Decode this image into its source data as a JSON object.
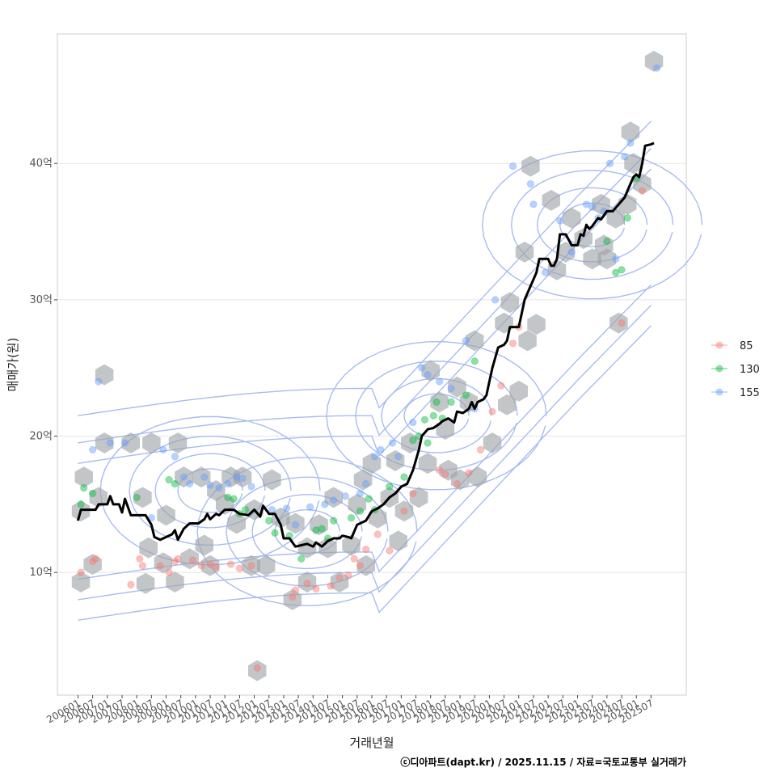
{
  "chart_data": {
    "type": "scatter",
    "xlabel": "거래년월",
    "ylabel": "매매가(원)",
    "caption": "ⓒ디아파트(dapt.kr) / 2025.11.15 / 자료=국토교통부 실거래가",
    "ylim": [
      1,
      49.5
    ],
    "xlim": [
      2005.3,
      2026.7
    ],
    "y_ticks": [
      {
        "value": 10,
        "label": "10억"
      },
      {
        "value": 20,
        "label": "20억"
      },
      {
        "value": 30,
        "label": "30억"
      },
      {
        "value": 40,
        "label": "40억"
      }
    ],
    "x_ticks": [
      "200601",
      "200607",
      "200701",
      "200707",
      "200801",
      "200807",
      "200901",
      "200907",
      "201001",
      "201007",
      "201101",
      "201107",
      "201201",
      "201207",
      "201301",
      "201307",
      "201401",
      "201407",
      "201501",
      "201507",
      "201601",
      "201607",
      "201701",
      "201707",
      "201801",
      "201807",
      "201901",
      "201907",
      "202001",
      "202007",
      "202101",
      "202107",
      "202201",
      "202207",
      "202301",
      "202307",
      "202401",
      "202407",
      "202501",
      "202507"
    ],
    "legend": {
      "entries": [
        {
          "label": "85",
          "color": "#F8766D"
        },
        {
          "label": "130",
          "color": "#00BA38"
        },
        {
          "label": "155",
          "color": "#619CFF"
        }
      ]
    },
    "colors": {
      "trend": "#000000",
      "hex": "#9EA3A8",
      "contour": "#A9BCF0",
      "grid": "#E5E5E5"
    },
    "series": [
      {
        "name": "85",
        "points": [
          [
            2006.1,
            10
          ],
          [
            2006.5,
            10.8
          ],
          [
            2006.6,
            11
          ],
          [
            2007.8,
            9.1
          ],
          [
            2008.1,
            11
          ],
          [
            2008.2,
            10.5
          ],
          [
            2008.8,
            10.5
          ],
          [
            2009.1,
            10
          ],
          [
            2009.3,
            10.8
          ],
          [
            2009.4,
            11
          ],
          [
            2009.9,
            10.9
          ],
          [
            2010.2,
            10.5
          ],
          [
            2010.5,
            10.6
          ],
          [
            2010.7,
            10.4
          ],
          [
            2011.2,
            10.6
          ],
          [
            2011.5,
            10.3
          ],
          [
            2011.9,
            10.5
          ],
          [
            2012.1,
            3
          ],
          [
            2013.3,
            8.2
          ],
          [
            2013.4,
            8.7
          ],
          [
            2013.8,
            9.2
          ],
          [
            2014.1,
            8.8
          ],
          [
            2014.6,
            9
          ],
          [
            2014.9,
            9.6
          ],
          [
            2015.2,
            9.8
          ],
          [
            2015.4,
            11
          ],
          [
            2015.6,
            10.5
          ],
          [
            2015.8,
            11.7
          ],
          [
            2016.2,
            12.8
          ],
          [
            2016.6,
            11.6
          ],
          [
            2017.1,
            14.5
          ],
          [
            2017.4,
            15.8
          ],
          [
            2018.3,
            17.5
          ],
          [
            2018.5,
            17.2
          ],
          [
            2018.9,
            16.5
          ],
          [
            2019.3,
            17.3
          ],
          [
            2019.7,
            19
          ],
          [
            2020.1,
            21.8
          ],
          [
            2020.4,
            23.7
          ],
          [
            2020.8,
            26.8
          ],
          [
            2021.0,
            28
          ],
          [
            2024.5,
            28.3
          ],
          [
            2025.2,
            38
          ]
        ]
      },
      {
        "name": "130",
        "points": [
          [
            2006.1,
            15
          ],
          [
            2006.2,
            16.2
          ],
          [
            2006.5,
            15.8
          ],
          [
            2008.0,
            15.5
          ],
          [
            2009.1,
            16.8
          ],
          [
            2009.3,
            16.5
          ],
          [
            2011.1,
            15.5
          ],
          [
            2011.3,
            15.4
          ],
          [
            2011.5,
            14.3
          ],
          [
            2011.7,
            14.6
          ],
          [
            2012.5,
            13.8
          ],
          [
            2012.7,
            12.9
          ],
          [
            2013.2,
            12.7
          ],
          [
            2013.6,
            11
          ],
          [
            2014.1,
            13.1
          ],
          [
            2014.3,
            13.2
          ],
          [
            2014.5,
            12.5
          ],
          [
            2014.7,
            13.8
          ],
          [
            2015.3,
            14
          ],
          [
            2015.6,
            14.5
          ],
          [
            2015.9,
            15.4
          ],
          [
            2016.1,
            14.6
          ],
          [
            2016.6,
            16.3
          ],
          [
            2017.1,
            17
          ],
          [
            2017.4,
            19.7
          ],
          [
            2017.6,
            20
          ],
          [
            2017.8,
            21.2
          ],
          [
            2017.9,
            19.5
          ],
          [
            2018.1,
            21.5
          ],
          [
            2018.2,
            22.5
          ],
          [
            2018.4,
            21.3
          ],
          [
            2018.7,
            22.5
          ],
          [
            2019.2,
            23
          ],
          [
            2019.5,
            25.5
          ],
          [
            2024.0,
            34.3
          ],
          [
            2024.3,
            32
          ],
          [
            2024.5,
            32.2
          ],
          [
            2024.7,
            36
          ],
          [
            2025.0,
            38.9
          ]
        ]
      },
      {
        "name": "155",
        "points": [
          [
            2006.5,
            19
          ],
          [
            2006.7,
            24
          ],
          [
            2007.1,
            19.5
          ],
          [
            2007.6,
            19.5
          ],
          [
            2008.5,
            14
          ],
          [
            2008.9,
            19
          ],
          [
            2009.3,
            18.5
          ],
          [
            2009.6,
            17
          ],
          [
            2009.8,
            16.5
          ],
          [
            2010.3,
            17
          ],
          [
            2010.5,
            16.4
          ],
          [
            2010.8,
            16.2
          ],
          [
            2011.1,
            16.5
          ],
          [
            2011.4,
            17
          ],
          [
            2011.6,
            16.9
          ],
          [
            2011.9,
            16.3
          ],
          [
            2012.6,
            14.6
          ],
          [
            2013.1,
            14.7
          ],
          [
            2013.4,
            13.5
          ],
          [
            2013.9,
            14.8
          ],
          [
            2014.4,
            15
          ],
          [
            2014.7,
            15.3
          ],
          [
            2015.1,
            15.6
          ],
          [
            2015.6,
            15.8
          ],
          [
            2015.8,
            16.5
          ],
          [
            2016.1,
            18.5
          ],
          [
            2016.3,
            19
          ],
          [
            2016.7,
            19.5
          ],
          [
            2016.9,
            18.5
          ],
          [
            2017.4,
            21
          ],
          [
            2017.7,
            25
          ],
          [
            2017.9,
            24.5
          ],
          [
            2018.3,
            24
          ],
          [
            2018.7,
            23.5
          ],
          [
            2019.2,
            27
          ],
          [
            2019.5,
            22
          ],
          [
            2020.2,
            30
          ],
          [
            2020.8,
            39.8
          ],
          [
            2021.4,
            38.5
          ],
          [
            2021.5,
            37
          ],
          [
            2021.9,
            32
          ],
          [
            2022.4,
            35.8
          ],
          [
            2022.8,
            33.5
          ],
          [
            2023.3,
            37
          ],
          [
            2023.5,
            36.8
          ],
          [
            2023.7,
            36
          ],
          [
            2023.9,
            36.5
          ],
          [
            2024.1,
            40
          ],
          [
            2024.3,
            33
          ],
          [
            2024.6,
            40.5
          ],
          [
            2024.8,
            41.5
          ],
          [
            2025.7,
            47
          ]
        ]
      }
    ],
    "trend": [
      [
        2006.0,
        13.8
      ],
      [
        2006.1,
        14.6
      ],
      [
        2006.6,
        14.6
      ],
      [
        2006.7,
        15
      ],
      [
        2007.0,
        15
      ],
      [
        2007.1,
        15.6
      ],
      [
        2007.2,
        15
      ],
      [
        2007.4,
        15
      ],
      [
        2007.5,
        14.4
      ],
      [
        2007.6,
        15.4
      ],
      [
        2007.8,
        14.2
      ],
      [
        2008.3,
        14.2
      ],
      [
        2008.5,
        13.5
      ],
      [
        2008.6,
        12.6
      ],
      [
        2008.8,
        12.4
      ],
      [
        2009.0,
        12.6
      ],
      [
        2009.2,
        12.8
      ],
      [
        2009.3,
        13.1
      ],
      [
        2009.4,
        12.4
      ],
      [
        2009.6,
        13.2
      ],
      [
        2009.8,
        13.6
      ],
      [
        2010.1,
        13.6
      ],
      [
        2010.3,
        13.9
      ],
      [
        2010.4,
        14.3
      ],
      [
        2010.5,
        13.9
      ],
      [
        2010.7,
        14.3
      ],
      [
        2010.8,
        14.2
      ],
      [
        2011.0,
        14.6
      ],
      [
        2011.3,
        14.6
      ],
      [
        2011.5,
        14.3
      ],
      [
        2011.8,
        14.2
      ],
      [
        2012.0,
        14.6
      ],
      [
        2012.2,
        14.1
      ],
      [
        2012.3,
        14.9
      ],
      [
        2012.5,
        14.3
      ],
      [
        2012.7,
        14.3
      ],
      [
        2012.9,
        13.5
      ],
      [
        2013.0,
        12.5
      ],
      [
        2013.2,
        12.5
      ],
      [
        2013.4,
        11.9
      ],
      [
        2013.6,
        12
      ],
      [
        2013.8,
        12.1
      ],
      [
        2014.0,
        11.9
      ],
      [
        2014.1,
        12.2
      ],
      [
        2014.3,
        11.9
      ],
      [
        2014.5,
        12.3
      ],
      [
        2014.7,
        12.5
      ],
      [
        2014.9,
        12.5
      ],
      [
        2015.0,
        12.7
      ],
      [
        2015.2,
        12.6
      ],
      [
        2015.3,
        12.5
      ],
      [
        2015.5,
        13.5
      ],
      [
        2015.8,
        13.8
      ],
      [
        2016.0,
        14.5
      ],
      [
        2016.2,
        14.7
      ],
      [
        2016.4,
        15
      ],
      [
        2016.6,
        15.5
      ],
      [
        2016.8,
        15.8
      ],
      [
        2017.0,
        16.3
      ],
      [
        2017.2,
        16.5
      ],
      [
        2017.4,
        17.5
      ],
      [
        2017.6,
        19
      ],
      [
        2017.7,
        20
      ],
      [
        2017.9,
        20.5
      ],
      [
        2018.1,
        20.6
      ],
      [
        2018.3,
        20.9
      ],
      [
        2018.4,
        21.1
      ],
      [
        2018.6,
        21.3
      ],
      [
        2018.8,
        21
      ],
      [
        2018.9,
        21.8
      ],
      [
        2019.1,
        21.7
      ],
      [
        2019.3,
        22
      ],
      [
        2019.4,
        22.5
      ],
      [
        2019.5,
        22
      ],
      [
        2019.6,
        22.5
      ],
      [
        2019.8,
        22.7
      ],
      [
        2019.9,
        23
      ],
      [
        2020.0,
        24
      ],
      [
        2020.1,
        25
      ],
      [
        2020.3,
        26.5
      ],
      [
        2020.5,
        26.7
      ],
      [
        2020.6,
        27
      ],
      [
        2020.7,
        28
      ],
      [
        2021.0,
        28
      ],
      [
        2021.1,
        29
      ],
      [
        2021.2,
        30
      ],
      [
        2021.4,
        31
      ],
      [
        2021.5,
        31.5
      ],
      [
        2021.6,
        32
      ],
      [
        2021.7,
        33
      ],
      [
        2022.0,
        33
      ],
      [
        2022.1,
        32.5
      ],
      [
        2022.2,
        32.5
      ],
      [
        2022.3,
        33
      ],
      [
        2022.4,
        34.8
      ],
      [
        2022.6,
        34.8
      ],
      [
        2022.8,
        34
      ],
      [
        2023.0,
        34
      ],
      [
        2023.1,
        34.8
      ],
      [
        2023.2,
        34.7
      ],
      [
        2023.3,
        35.5
      ],
      [
        2023.4,
        35.2
      ],
      [
        2023.5,
        35.4
      ],
      [
        2023.7,
        36
      ],
      [
        2023.8,
        35.9
      ],
      [
        2024.0,
        36.5
      ],
      [
        2024.2,
        36.5
      ],
      [
        2024.4,
        37
      ],
      [
        2024.6,
        37.5
      ],
      [
        2024.8,
        38.5
      ],
      [
        2024.9,
        39
      ],
      [
        2025.0,
        39.2
      ],
      [
        2025.1,
        39
      ],
      [
        2025.2,
        40
      ],
      [
        2025.3,
        41.3
      ],
      [
        2025.5,
        41.4
      ],
      [
        2025.6,
        41.5
      ]
    ],
    "hex_bins": [
      [
        2006.2,
        17
      ],
      [
        2006.1,
        14.5
      ],
      [
        2006.1,
        9.3
      ],
      [
        2006.5,
        10.6
      ],
      [
        2006.7,
        15.5
      ],
      [
        2006.9,
        19.5
      ],
      [
        2006.9,
        24.5
      ],
      [
        2007.8,
        19.5
      ],
      [
        2008.2,
        15.5
      ],
      [
        2008.5,
        19.5
      ],
      [
        2008.4,
        11.8
      ],
      [
        2008.3,
        9.2
      ],
      [
        2008.9,
        10.7
      ],
      [
        2009.0,
        14.2
      ],
      [
        2009.3,
        9.3
      ],
      [
        2009.4,
        19.5
      ],
      [
        2009.6,
        17
      ],
      [
        2009.8,
        11
      ],
      [
        2010.2,
        17
      ],
      [
        2010.3,
        12
      ],
      [
        2010.5,
        10.5
      ],
      [
        2010.7,
        16
      ],
      [
        2011.0,
        15
      ],
      [
        2011.2,
        17
      ],
      [
        2011.4,
        13.6
      ],
      [
        2011.9,
        10.5
      ],
      [
        2011.6,
        17
      ],
      [
        2012.0,
        14.6
      ],
      [
        2012.1,
        2.8
      ],
      [
        2012.4,
        10.5
      ],
      [
        2012.6,
        16.8
      ],
      [
        2012.9,
        14
      ],
      [
        2013.3,
        8
      ],
      [
        2013.4,
        13.6
      ],
      [
        2013.8,
        11.8
      ],
      [
        2013.8,
        9.3
      ],
      [
        2014.2,
        13.5
      ],
      [
        2014.5,
        11.8
      ],
      [
        2014.7,
        15.5
      ],
      [
        2014.9,
        9.3
      ],
      [
        2015.3,
        12
      ],
      [
        2015.5,
        15
      ],
      [
        2015.7,
        16.8
      ],
      [
        2015.8,
        10.5
      ],
      [
        2016.0,
        18
      ],
      [
        2016.2,
        14
      ],
      [
        2016.6,
        15.5
      ],
      [
        2016.8,
        18.2
      ],
      [
        2016.9,
        12.3
      ],
      [
        2017.1,
        14.5
      ],
      [
        2017.3,
        19.5
      ],
      [
        2017.6,
        15.5
      ],
      [
        2017.9,
        18
      ],
      [
        2018.0,
        24.8
      ],
      [
        2018.3,
        22.5
      ],
      [
        2018.5,
        20.5
      ],
      [
        2018.6,
        17.5
      ],
      [
        2018.9,
        23.6
      ],
      [
        2019.0,
        16.8
      ],
      [
        2019.3,
        22.5
      ],
      [
        2019.5,
        27
      ],
      [
        2019.6,
        17
      ],
      [
        2020.1,
        19.5
      ],
      [
        2020.5,
        28.3
      ],
      [
        2020.6,
        22.3
      ],
      [
        2020.7,
        29.8
      ],
      [
        2021.0,
        23.3
      ],
      [
        2021.2,
        33.5
      ],
      [
        2021.3,
        27
      ],
      [
        2021.4,
        39.8
      ],
      [
        2021.6,
        28.2
      ],
      [
        2022.1,
        37.3
      ],
      [
        2022.3,
        32.2
      ],
      [
        2022.6,
        33.5
      ],
      [
        2022.8,
        36
      ],
      [
        2023.2,
        34.5
      ],
      [
        2023.5,
        33
      ],
      [
        2023.8,
        37
      ],
      [
        2023.9,
        34
      ],
      [
        2024.0,
        33
      ],
      [
        2024.3,
        36
      ],
      [
        2024.4,
        28.3
      ],
      [
        2024.7,
        37
      ],
      [
        2024.8,
        42.3
      ],
      [
        2024.9,
        40
      ],
      [
        2025.2,
        38.5
      ],
      [
        2025.6,
        47.5
      ]
    ],
    "density": {
      "centers": [
        [
          2010.5,
          16
        ],
        [
          2013.8,
          13
        ],
        [
          2018.2,
          21.5
        ],
        [
          2023.5,
          35.5
        ]
      ]
    }
  }
}
